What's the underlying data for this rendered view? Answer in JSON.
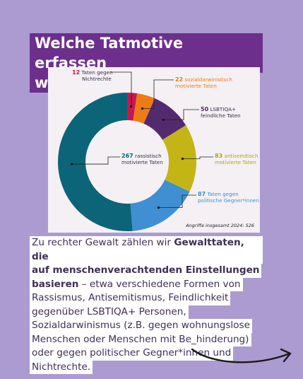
{
  "title": {
    "line1": "Welche Tatmotive erfassen",
    "line2": "wir?"
  },
  "chart_data": {
    "type": "pie",
    "style": "donut",
    "total_label": "Angriffe insgesamt 2024: 526",
    "slices": [
      {
        "value": 12,
        "value_label": "12",
        "label": "Taten gegen Nichtrechte",
        "color": "#c8174f"
      },
      {
        "value": 22,
        "value_label": "22",
        "label": "sozialdarwinistisch motivierte Taten",
        "color": "#ee7b16"
      },
      {
        "value": 50,
        "value_label": "50",
        "label": "LSBTIQA+ feindliche Taten",
        "color": "#542a6e"
      },
      {
        "value": 83,
        "value_label": "83",
        "label": "antisemitisch motivierte Taten",
        "color": "#c4b517"
      },
      {
        "value": 87,
        "value_label": "87",
        "label": "Taten gegen politische Gegner*innen",
        "color": "#3f8fd2"
      },
      {
        "value": 267,
        "value_label": "267",
        "label": "rassistisch motivierte Taten",
        "color": "#0c6479"
      }
    ],
    "labels_text": {
      "s0": [
        "Taten gegen",
        "Nichtrechte"
      ],
      "s1": [
        "sozialdarwinistisch",
        "motivierte Taten"
      ],
      "s2": [
        "LSBTIQA+",
        "feindliche Taten"
      ],
      "s3": [
        "antisemitisch",
        "motivierte Taten"
      ],
      "s4": [
        "Taten gegen",
        "politische Gegner*innen"
      ],
      "s5": [
        "rassistisch",
        "motivierte Taten"
      ]
    },
    "label_colors": [
      "#c8174f",
      "#ee7b16",
      "#542a6e",
      "#b3a40f",
      "#3f8fd2",
      "#0c6479"
    ]
  },
  "body": {
    "l1": "Zu rechter Gewalt zählen wir ",
    "l1b": "Gewalttaten, die",
    "l2b": "auf menschenverachtenden Einstellungen",
    "l3b": "basieren",
    "l3": " – etwa verschiedene Formen von",
    "l4": "Rassismus, Antisemitismus, Feindlichkeit",
    "l5": "gegenüber LSBTIQA+ Personen,",
    "l6": "Sozialdarwinismus (z.B. gegen wohnungslose",
    "l7": "Menschen oder Menschen mit Be_hinderung)",
    "l8": "oder gegen politischer Gegner*innen und",
    "l9": "Nichtrechte."
  }
}
